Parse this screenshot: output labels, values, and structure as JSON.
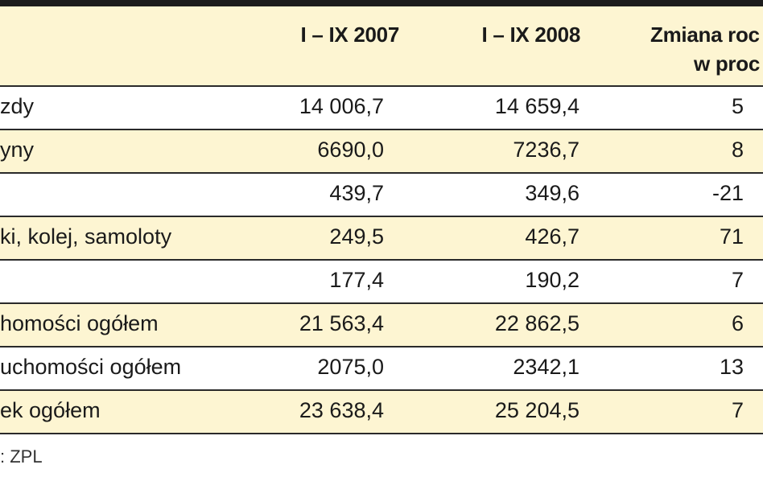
{
  "header": {
    "col1": "I – IX 2007",
    "col2": "I – IX 2008",
    "col3_line1": "Zmiana roc",
    "col3_line2": "w proc"
  },
  "rows": [
    {
      "label": "zdy",
      "v2007": "14 006,7",
      "v2008": "14 659,4",
      "change": "5"
    },
    {
      "label": "yny",
      "v2007": "6690,0",
      "v2008": "7236,7",
      "change": "8"
    },
    {
      "label": "",
      "v2007": "439,7",
      "v2008": "349,6",
      "change": "-21"
    },
    {
      "label": "ki, kolej, samoloty",
      "v2007": "249,5",
      "v2008": "426,7",
      "change": "71"
    },
    {
      "label": "",
      "v2007": "177,4",
      "v2008": "190,2",
      "change": "7"
    },
    {
      "label": "homości ogółem",
      "v2007": "21 563,4",
      "v2008": "22 862,5",
      "change": "6"
    },
    {
      "label": "uchomości ogółem",
      "v2007": "2075,0",
      "v2008": "2342,1",
      "change": "13"
    },
    {
      "label": "ek ogółem",
      "v2007": "23 638,4",
      "v2008": "25 204,5",
      "change": "7"
    }
  ],
  "source": ": ZPL"
}
